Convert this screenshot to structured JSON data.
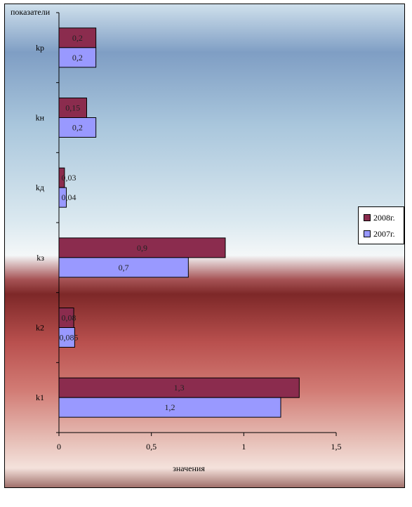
{
  "chart_data": {
    "type": "bar",
    "orientation": "horizontal",
    "ylabel": "показатели",
    "xlabel": "значения",
    "categories": [
      "kp",
      "kн",
      "kд",
      "kз",
      "k2",
      "k1"
    ],
    "series": [
      {
        "name": "2008г.",
        "color": "#8b2c4e",
        "values": [
          0.2,
          0.15,
          0.03,
          0.9,
          0.08,
          1.3
        ],
        "labels": [
          "0,2",
          "0,15",
          "0,03",
          "0,9",
          "0,08",
          "1,3"
        ]
      },
      {
        "name": "2007г.",
        "color": "#9999ff",
        "values": [
          0.2,
          0.2,
          0.04,
          0.7,
          0.085,
          1.2
        ],
        "labels": [
          "0,2",
          "0,2",
          "0,04",
          "0,7",
          "0,085",
          "1,2"
        ]
      }
    ],
    "xlim": [
      0,
      1.5
    ],
    "xticks": [
      0,
      0.5,
      1,
      1.5
    ],
    "xtick_labels": [
      "0",
      "0,5",
      "1",
      "1,5"
    ],
    "grid": false,
    "legend_position": "right"
  }
}
